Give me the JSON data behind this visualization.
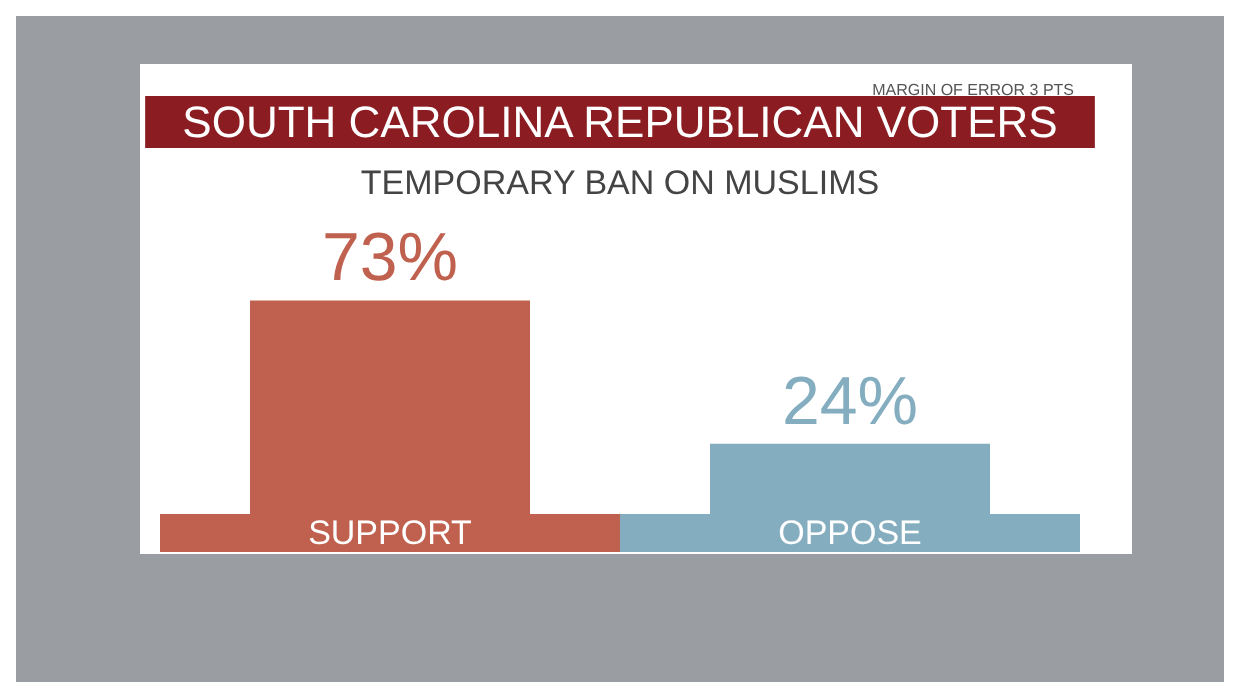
{
  "chart_data": {
    "type": "bar",
    "title": "SOUTH CAROLINA REPUBLICAN VOTERS",
    "subtitle": "TEMPORARY BAN ON MUSLIMS",
    "annotations": [
      "MARGIN OF ERROR 3 PTS"
    ],
    "categories": [
      "SUPPORT",
      "OPPOSE"
    ],
    "values": [
      73,
      24
    ],
    "value_labels": [
      "73%",
      "24%"
    ],
    "colors": [
      "#c0614f",
      "#84aec0"
    ],
    "grid": false
  }
}
